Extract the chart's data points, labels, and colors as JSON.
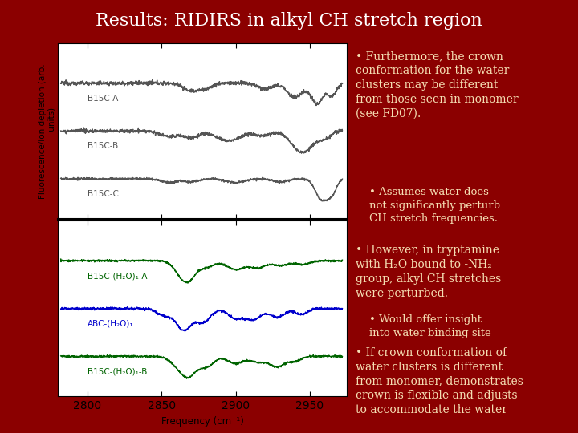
{
  "title": "Results: RIDIRS in alkyl CH stretch region",
  "title_bg": "#00008B",
  "slide_bg": "#8B0000",
  "title_color": "#FFFFFF",
  "plot_bg": "#FFFFFF",
  "xmin": 2780,
  "xmax": 2975,
  "xlabel": "Frequency (cm⁻¹)",
  "ylabel": "Fluorescence/ion depletion (arb.\n units)",
  "labels_gray": [
    "B15C-A",
    "B15C-B",
    "B15C-C"
  ],
  "labels_color": [
    "B15C-(H₂O)₁-A",
    "ABC-(H₂O)₁",
    "B15C-(H₂O)₁-B"
  ],
  "color_green": "#006400",
  "color_blue": "#0000CC",
  "color_gray": "#555555",
  "text_color": "#F5DEB3",
  "text_fontsize": 10.0,
  "title_fontsize": 16
}
